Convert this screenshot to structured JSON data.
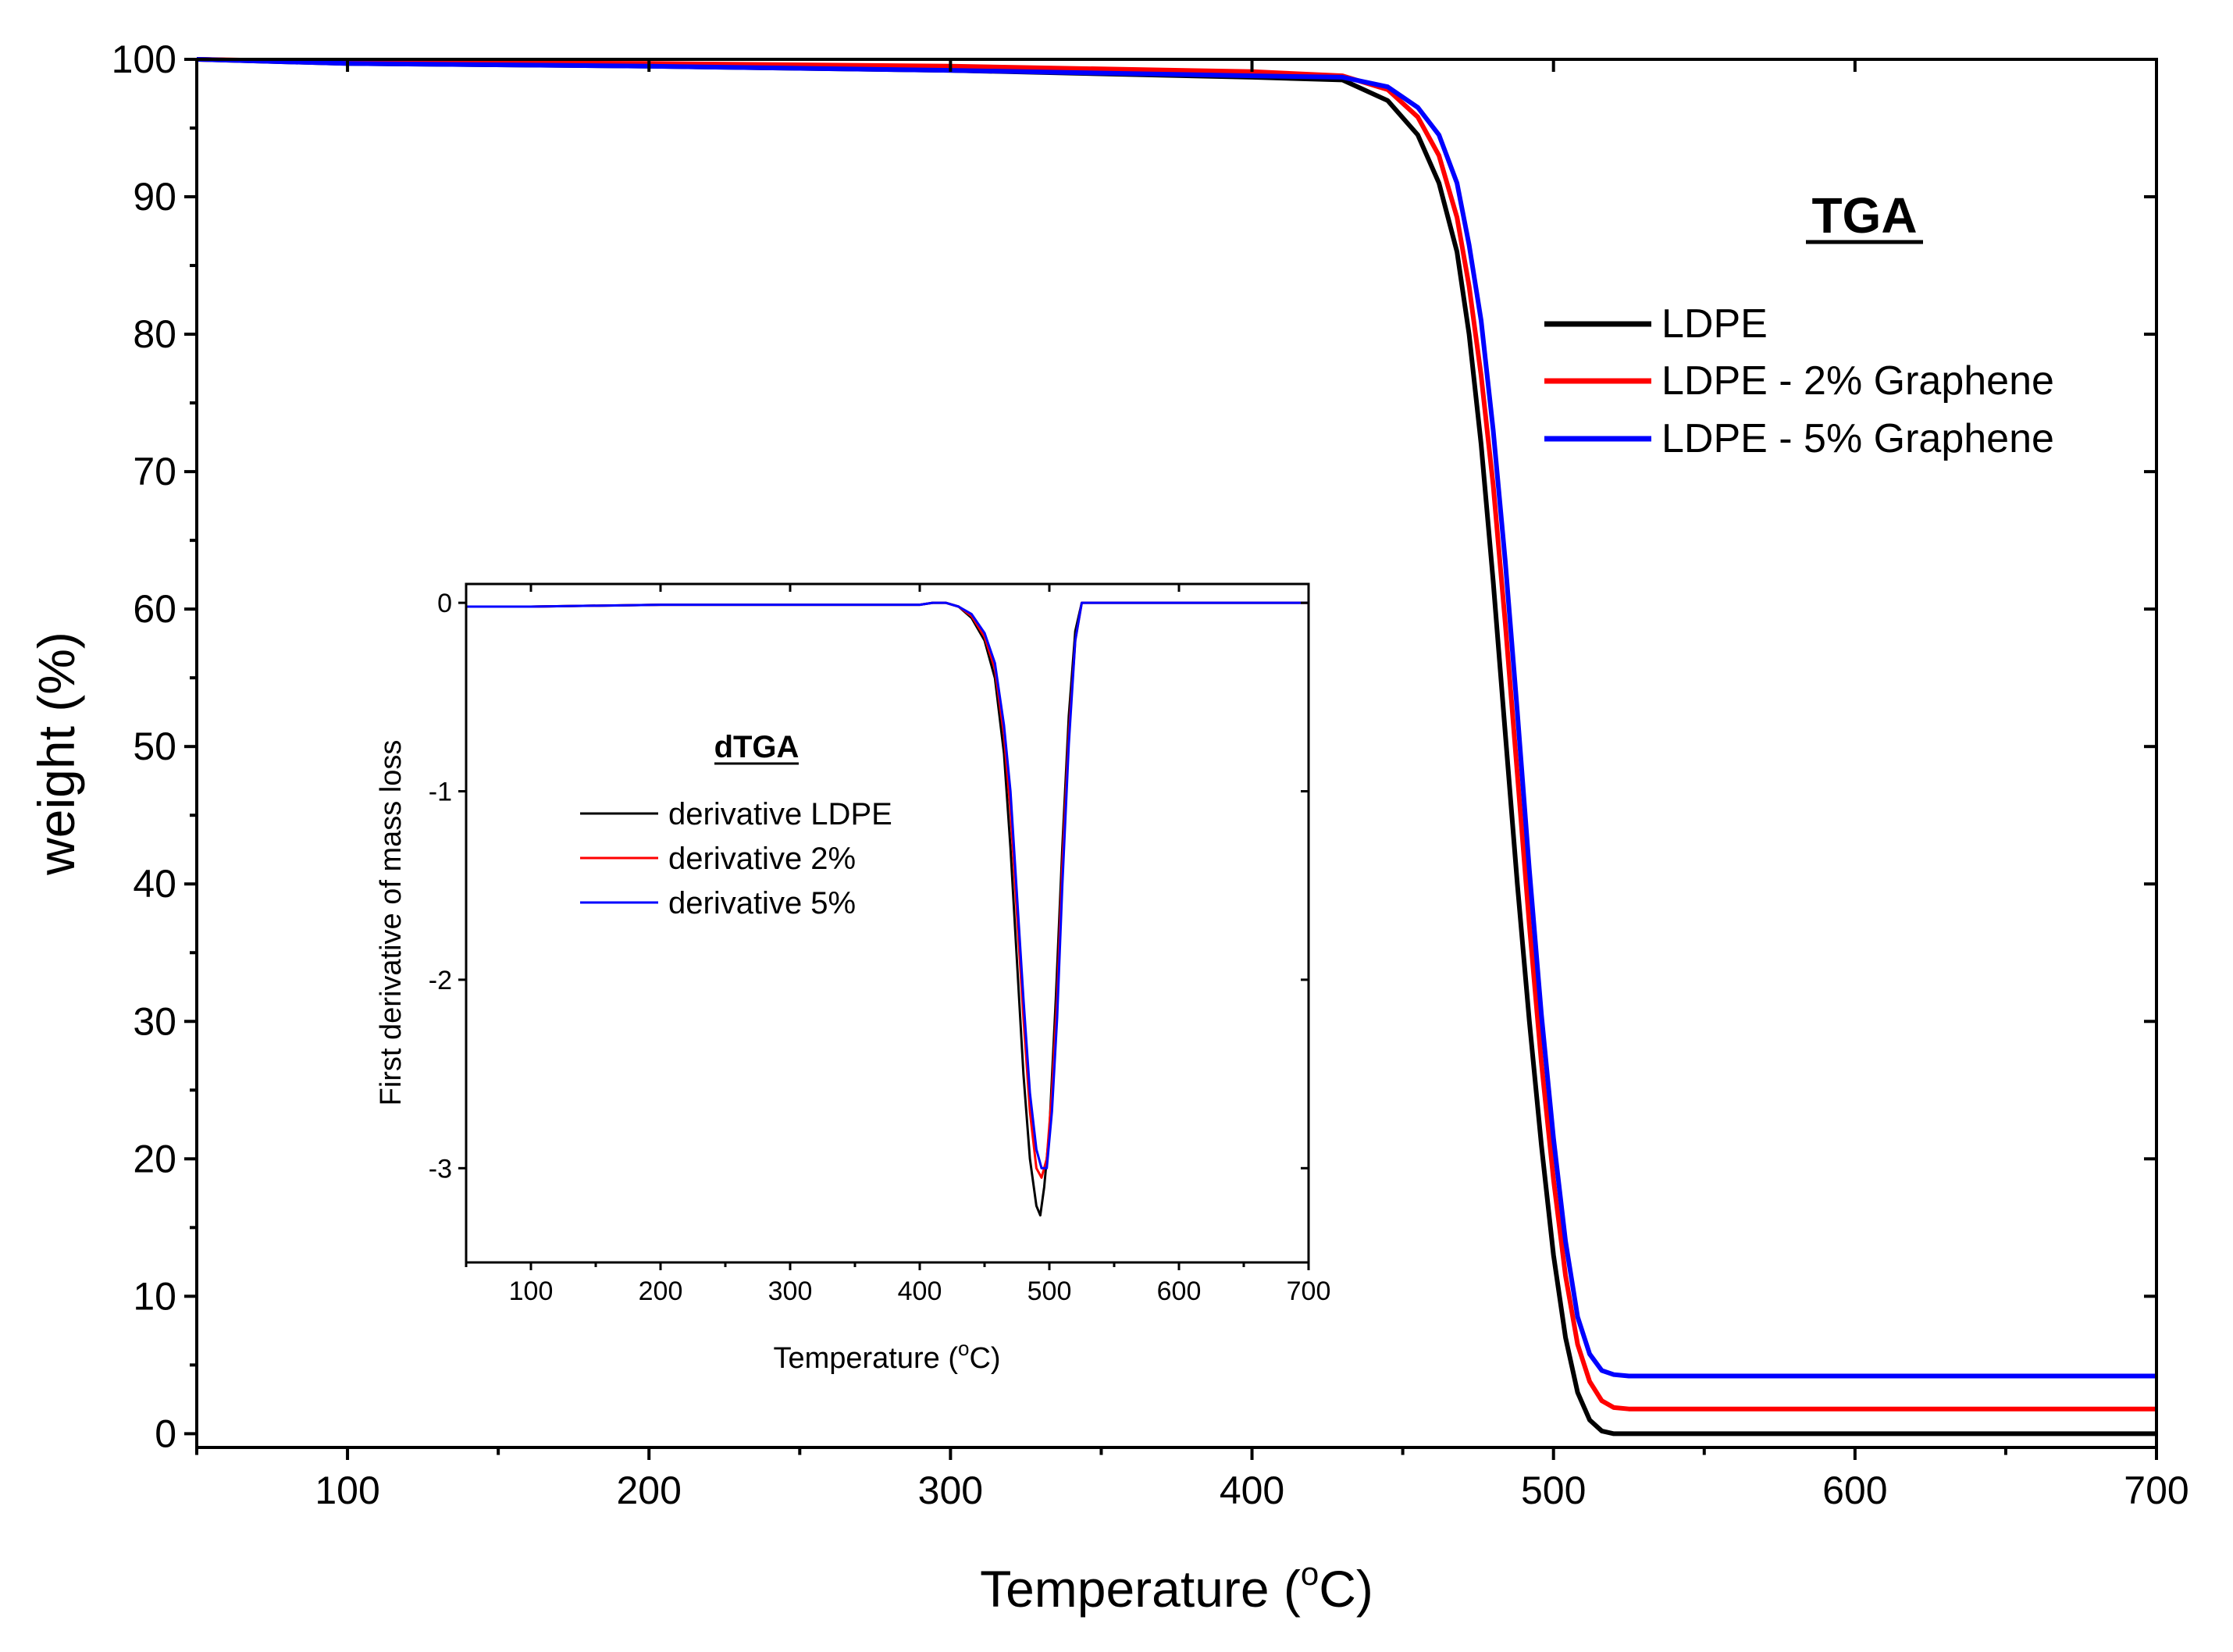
{
  "chart_data": [
    {
      "id": "main",
      "type": "line",
      "title": "TGA",
      "xlabel": "Temperature (°C)",
      "xlabel_parts": {
        "before": "Temperature (",
        "sup": "o",
        "after": "C)"
      },
      "ylabel": "weight (%)",
      "xlim": [
        50,
        700
      ],
      "ylim": [
        -1,
        100
      ],
      "xticks": [
        100,
        200,
        300,
        400,
        500,
        600,
        700
      ],
      "yticks": [
        0,
        10,
        20,
        30,
        40,
        50,
        60,
        70,
        80,
        90,
        100
      ],
      "grid": false,
      "legend_position": "top-right",
      "series": [
        {
          "name": "LDPE",
          "color": "#000000",
          "x": [
            50,
            100,
            200,
            300,
            400,
            430,
            445,
            455,
            462,
            468,
            472,
            476,
            480,
            484,
            488,
            492,
            496,
            500,
            504,
            508,
            512,
            516,
            520,
            530,
            600,
            700
          ],
          "y": [
            100,
            99.7,
            99.5,
            99.2,
            98.7,
            98.5,
            97,
            94.5,
            91,
            86,
            80,
            72,
            62,
            51,
            40,
            30,
            21,
            13,
            7,
            3,
            1,
            0.2,
            0,
            0,
            0,
            0
          ]
        },
        {
          "name": "LDPE - 2% Graphene",
          "color": "#ff0000",
          "x": [
            50,
            100,
            200,
            300,
            400,
            430,
            445,
            455,
            462,
            468,
            472,
            476,
            480,
            484,
            488,
            492,
            496,
            500,
            504,
            508,
            512,
            516,
            520,
            525,
            530,
            600,
            700
          ],
          "y": [
            100,
            99.8,
            99.7,
            99.5,
            99.1,
            98.8,
            97.8,
            95.8,
            93,
            88.5,
            83.5,
            77,
            69,
            59,
            48,
            37,
            27,
            18.5,
            11.5,
            6.5,
            3.8,
            2.4,
            1.9,
            1.8,
            1.8,
            1.8,
            1.8
          ]
        },
        {
          "name": "LDPE - 5% Graphene",
          "color": "#0000ff",
          "x": [
            50,
            100,
            200,
            300,
            400,
            430,
            445,
            455,
            462,
            468,
            472,
            476,
            480,
            484,
            488,
            492,
            496,
            500,
            504,
            508,
            512,
            516,
            520,
            525,
            530,
            600,
            700
          ],
          "y": [
            100,
            99.7,
            99.5,
            99.2,
            98.8,
            98.7,
            98,
            96.5,
            94.5,
            91,
            86.5,
            81,
            73,
            63.5,
            52.5,
            41,
            30.5,
            21.5,
            14,
            8.5,
            5.8,
            4.6,
            4.3,
            4.2,
            4.2,
            4.2,
            4.2
          ]
        }
      ]
    },
    {
      "id": "inset",
      "type": "line",
      "title": "dTGA",
      "xlabel": "Temperature (°C)",
      "xlabel_parts": {
        "before": "Temperature (",
        "sup": "o",
        "after": "C)"
      },
      "ylabel": "First derivative of mass loss",
      "xlim": [
        50,
        700
      ],
      "ylim": [
        -3.5,
        0.1
      ],
      "xticks": [
        100,
        200,
        300,
        400,
        500,
        600,
        700
      ],
      "yticks": [
        0,
        -1,
        -2,
        -3
      ],
      "grid": false,
      "legend_position": "center-left",
      "series": [
        {
          "name": "derivative LDPE",
          "color": "#000000",
          "x": [
            50,
            100,
            200,
            300,
            400,
            410,
            420,
            430,
            440,
            450,
            458,
            465,
            470,
            475,
            480,
            485,
            490,
            493,
            496,
            500,
            505,
            510,
            515,
            520,
            525,
            530,
            600,
            700
          ],
          "y": [
            -0.02,
            -0.02,
            -0.01,
            -0.01,
            -0.01,
            0.0,
            0.0,
            -0.02,
            -0.08,
            -0.2,
            -0.4,
            -0.8,
            -1.3,
            -1.9,
            -2.5,
            -2.95,
            -3.2,
            -3.25,
            -3.1,
            -2.8,
            -2.1,
            -1.3,
            -0.6,
            -0.15,
            0.0,
            0.0,
            0.0,
            0.0
          ]
        },
        {
          "name": "derivative 2%",
          "color": "#ff0000",
          "x": [
            50,
            100,
            200,
            300,
            400,
            410,
            420,
            430,
            440,
            450,
            458,
            465,
            470,
            475,
            480,
            485,
            490,
            494,
            498,
            502,
            506,
            510,
            515,
            520,
            525,
            530,
            600,
            700
          ],
          "y": [
            -0.02,
            -0.02,
            -0.01,
            -0.01,
            -0.01,
            0.0,
            0.0,
            -0.02,
            -0.07,
            -0.18,
            -0.35,
            -0.7,
            -1.1,
            -1.65,
            -2.2,
            -2.7,
            -3.0,
            -3.05,
            -2.95,
            -2.6,
            -2.1,
            -1.4,
            -0.7,
            -0.2,
            0.0,
            0.0,
            0.0,
            0.0
          ]
        },
        {
          "name": "derivative 5%",
          "color": "#0000ff",
          "x": [
            50,
            100,
            200,
            300,
            400,
            410,
            420,
            430,
            440,
            450,
            458,
            465,
            470,
            475,
            480,
            485,
            490,
            494,
            498,
            502,
            506,
            510,
            515,
            520,
            525,
            530,
            600,
            700
          ],
          "y": [
            -0.02,
            -0.02,
            -0.01,
            -0.01,
            -0.01,
            0.0,
            0.0,
            -0.02,
            -0.06,
            -0.16,
            -0.32,
            -0.65,
            -1.0,
            -1.55,
            -2.1,
            -2.6,
            -2.9,
            -3.0,
            -3.0,
            -2.7,
            -2.2,
            -1.5,
            -0.75,
            -0.2,
            0.0,
            0.0,
            0.0,
            0.0
          ]
        }
      ]
    }
  ]
}
